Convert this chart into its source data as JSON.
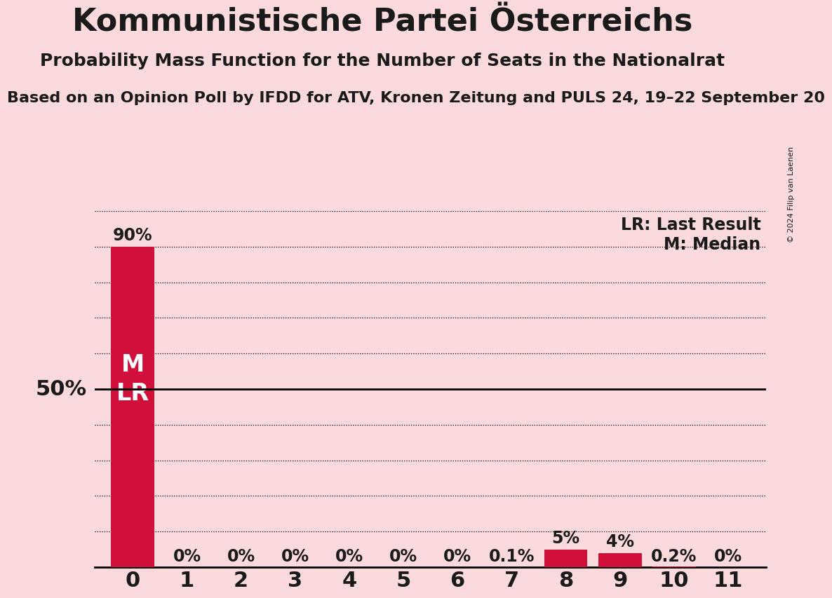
{
  "title": "Kommunistische Partei Österreichs",
  "subtitle": "Probability Mass Function for the Number of Seats in the Nationalrat",
  "source_line": "Based on an Opinion Poll by IFDD for ATV, Kronen Zeitung and PULS 24, 19–22 September 20",
  "copyright": "© 2024 Filip van Laenen",
  "categories": [
    0,
    1,
    2,
    3,
    4,
    5,
    6,
    7,
    8,
    9,
    10,
    11
  ],
  "values": [
    0.9,
    0.0,
    0.0,
    0.0,
    0.0,
    0.0,
    0.0,
    0.001,
    0.05,
    0.04,
    0.002,
    0.0
  ],
  "bar_color": "#D0103A",
  "background_color": "#FADADD",
  "median_line_y": 0.5,
  "ylim_max": 1.0,
  "bar_labels": [
    "90%",
    "0%",
    "0%",
    "0%",
    "0%",
    "0%",
    "0%",
    "0.1%",
    "5%",
    "4%",
    "0.2%",
    "0%"
  ],
  "lr_label": "LR: Last Result",
  "m_label": "M: Median",
  "title_fontsize": 32,
  "subtitle_fontsize": 18,
  "source_fontsize": 16,
  "bar_label_fontsize": 17,
  "axis_tick_fontsize": 22,
  "ylabel_fontsize": 22,
  "legend_fontsize": 17,
  "ml_fontsize": 24,
  "grid_levels": [
    0.1,
    0.2,
    0.3,
    0.4,
    0.5,
    0.6,
    0.7,
    0.8,
    0.9,
    1.0
  ]
}
